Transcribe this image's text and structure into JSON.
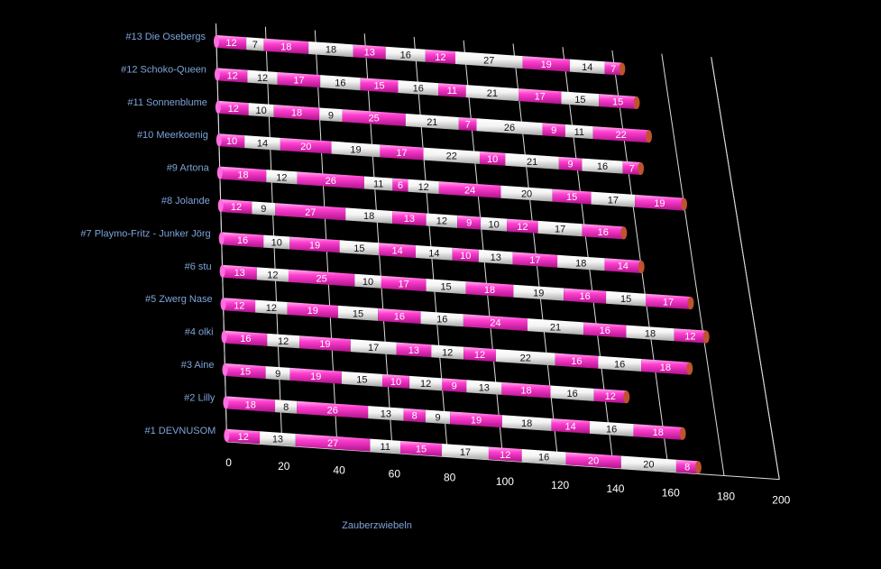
{
  "chart_data": {
    "type": "bar",
    "orientation": "horizontal",
    "stacked": true,
    "three_d": true,
    "background": "#000000",
    "colors": {
      "pink": "#ff3fd0",
      "white": "#f4f4f4",
      "grid": "#dddddd",
      "label": "#7ea4d8"
    },
    "xlabel": "Zauberzwiebeln",
    "xlim": [
      0,
      200
    ],
    "xticks": [
      0,
      20,
      40,
      60,
      80,
      100,
      120,
      140,
      160,
      180,
      200
    ],
    "categories": [
      "#13 Die Osebergs",
      "#12 Schoko-Queen",
      "#11 Sonnenblume",
      "#10 Meerkoenig",
      "#9 Artona",
      "#8 Jolande",
      "#7 Playmo-Fritz - Junker Jörg",
      "#6 stu",
      "#5 Zwerg Nase",
      "#4 olki",
      "#3 Aine",
      "#2 Lilly",
      "#1 DEVNUSOM"
    ],
    "rows": [
      [
        12,
        7,
        18,
        18,
        13,
        16,
        12,
        27,
        19,
        14,
        7
      ],
      [
        12,
        12,
        17,
        16,
        15,
        16,
        11,
        21,
        17,
        15,
        15
      ],
      [
        12,
        10,
        18,
        9,
        25,
        21,
        7,
        26,
        9,
        11,
        22
      ],
      [
        10,
        14,
        20,
        19,
        17,
        22,
        10,
        21,
        9,
        16,
        7
      ],
      [
        18,
        12,
        26,
        11,
        6,
        12,
        24,
        20,
        15,
        17,
        19
      ],
      [
        12,
        9,
        27,
        18,
        13,
        12,
        9,
        10,
        12,
        17,
        16
      ],
      [
        16,
        10,
        19,
        15,
        14,
        14,
        10,
        13,
        17,
        18,
        14
      ],
      [
        13,
        12,
        25,
        10,
        17,
        15,
        18,
        19,
        16,
        15,
        17
      ],
      [
        12,
        12,
        19,
        15,
        16,
        16,
        24,
        21,
        16,
        18,
        12
      ],
      [
        16,
        12,
        19,
        17,
        13,
        12,
        12,
        22,
        16,
        16,
        18
      ],
      [
        15,
        9,
        19,
        15,
        10,
        12,
        9,
        13,
        18,
        16,
        12
      ],
      [
        18,
        8,
        26,
        13,
        8,
        9,
        19,
        18,
        14,
        16,
        18
      ],
      [
        12,
        13,
        27,
        11,
        15,
        17,
        12,
        16,
        20,
        20,
        8
      ]
    ]
  }
}
